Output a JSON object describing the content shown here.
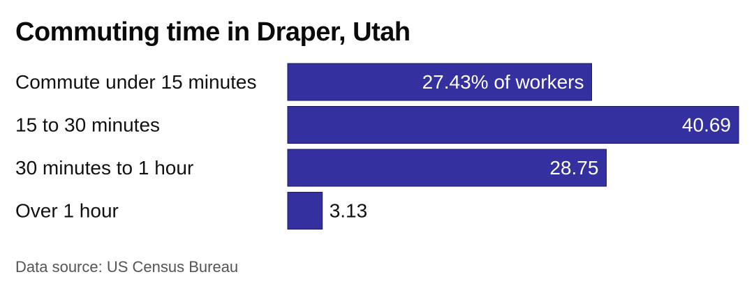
{
  "chart_data": {
    "type": "bar",
    "orientation": "horizontal",
    "title": "Commuting time in Draper, Utah",
    "categories": [
      "Commute under 15 minutes",
      "15 to 30 minutes",
      "30 minutes to 1 hour",
      "Over 1 hour"
    ],
    "values": [
      27.43,
      40.69,
      28.75,
      3.13
    ],
    "value_labels": [
      "27.43% of workers",
      "40.69",
      "28.75",
      "3.13"
    ],
    "xlim": [
      0,
      40.69
    ],
    "grid": false,
    "legend": "none",
    "bar_color": "#3430a0",
    "source": "Data source: US Census Bureau"
  }
}
